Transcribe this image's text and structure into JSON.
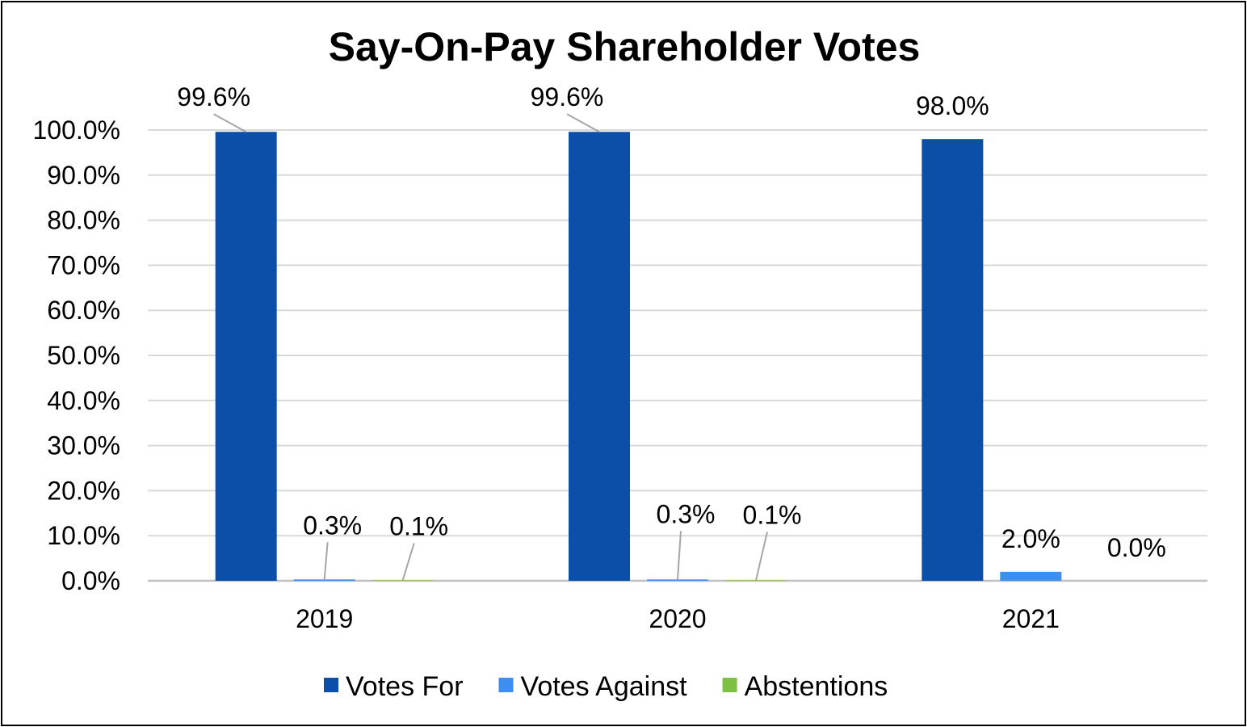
{
  "chart_data": {
    "type": "bar",
    "title": "Say-On-Pay Shareholder Votes",
    "xlabel": "",
    "ylabel": "",
    "categories": [
      "2019",
      "2020",
      "2021"
    ],
    "ylim": [
      0,
      100
    ],
    "yticks": [
      0,
      10,
      20,
      30,
      40,
      50,
      60,
      70,
      80,
      90,
      100
    ],
    "ytick_labels": [
      "0.0%",
      "10.0%",
      "20.0%",
      "30.0%",
      "40.0%",
      "50.0%",
      "60.0%",
      "70.0%",
      "80.0%",
      "90.0%",
      "100.0%"
    ],
    "grid": true,
    "legend_position": "bottom",
    "series": [
      {
        "name": "Votes For",
        "color": "#0B4FA8",
        "values": [
          99.6,
          99.6,
          98.0
        ],
        "labels": [
          "99.6%",
          "99.6%",
          "98.0%"
        ]
      },
      {
        "name": "Votes Against",
        "color": "#3C8FF0",
        "values": [
          0.3,
          0.3,
          2.0
        ],
        "labels": [
          "0.3%",
          "0.3%",
          "2.0%"
        ]
      },
      {
        "name": "Abstentions",
        "color": "#7CC142",
        "values": [
          0.1,
          0.1,
          0.0
        ],
        "labels": [
          "0.1%",
          "0.1%",
          "0.0%"
        ]
      }
    ]
  }
}
